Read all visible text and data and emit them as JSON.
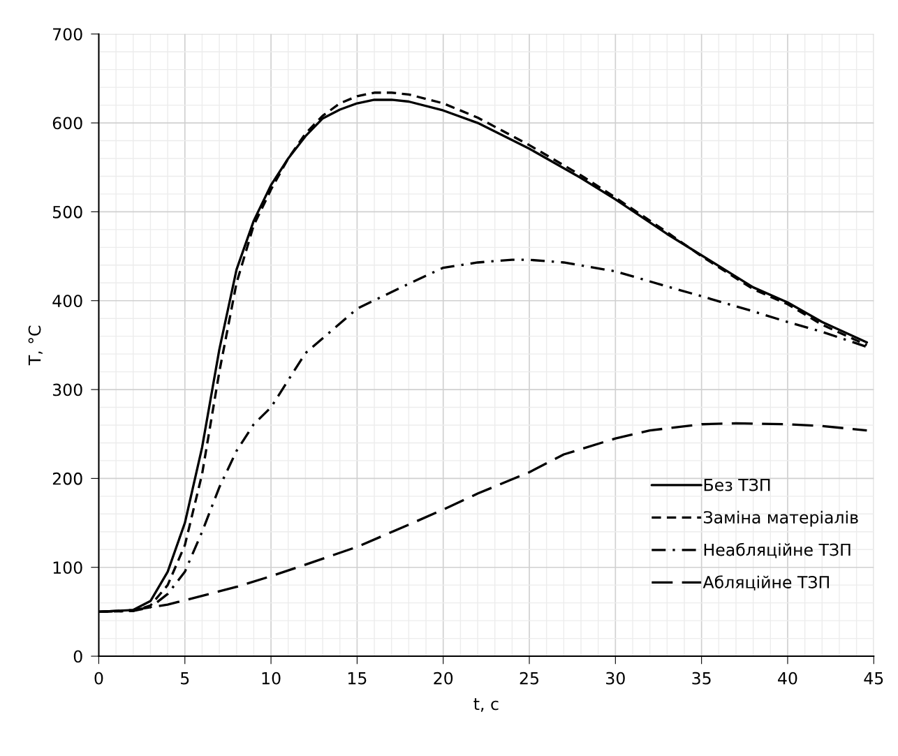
{
  "chart_data": {
    "type": "line",
    "xlabel": "t, с",
    "ylabel": "T, °С",
    "xlim": [
      0,
      45
    ],
    "xticks": [
      0,
      5,
      10,
      15,
      20,
      25,
      30,
      35,
      40,
      45
    ],
    "ylim": [
      0,
      700
    ],
    "yticks": [
      0,
      100,
      200,
      300,
      400,
      500,
      600,
      700
    ],
    "grid": true,
    "legend": "right",
    "marker": "none",
    "series": [
      {
        "name": "Без ТЗП",
        "color": "#000000",
        "line_style": "solid",
        "x": [
          0,
          2,
          3,
          4,
          5,
          6,
          7,
          8,
          9,
          10,
          11,
          12,
          13,
          14,
          15,
          16,
          17,
          18,
          20,
          22,
          25,
          28,
          30,
          33,
          35,
          38,
          40,
          42,
          44.6
        ],
        "values": [
          50,
          52,
          62,
          95,
          150,
          235,
          345,
          435,
          490,
          530,
          560,
          585,
          605,
          615,
          622,
          626,
          626,
          624,
          614,
          600,
          571,
          538,
          514,
          475,
          451,
          415,
          398,
          376,
          353
        ]
      },
      {
        "name": "Заміна матеріалів",
        "color": "#000000",
        "line_style": "dashed",
        "x": [
          0,
          2,
          3,
          4,
          5,
          6,
          7,
          8,
          9,
          10,
          11,
          12,
          13,
          14,
          15,
          16,
          17,
          18,
          20,
          22,
          25,
          28,
          30,
          33,
          35,
          38,
          40,
          42,
          44.6
        ],
        "values": [
          50,
          51,
          57,
          80,
          125,
          205,
          320,
          420,
          485,
          525,
          560,
          588,
          608,
          622,
          630,
          634,
          634,
          632,
          622,
          606,
          575,
          541,
          516,
          477,
          450,
          413,
          396,
          373,
          350
        ]
      },
      {
        "name": "Неабляційне ТЗП",
        "color": "#000000",
        "line_style": "dashdot",
        "x": [
          0,
          2,
          3,
          4,
          5,
          6,
          7,
          8,
          9,
          10,
          12,
          15,
          18,
          20,
          22,
          24,
          25,
          27,
          30,
          33,
          35,
          38,
          40,
          42,
          44.6
        ],
        "values": [
          50,
          51,
          55,
          70,
          95,
          140,
          190,
          231,
          261,
          280,
          341,
          391,
          419,
          437,
          443,
          446,
          446,
          443,
          433,
          416,
          405,
          388,
          376,
          365,
          348
        ]
      },
      {
        "name": "Абляційне ТЗП",
        "color": "#000000",
        "line_style": "longdash",
        "x": [
          0,
          2,
          4,
          5,
          8,
          10,
          12,
          15,
          18,
          20,
          22,
          25,
          27,
          30,
          32,
          35,
          37,
          40,
          42,
          44.6
        ],
        "values": [
          50,
          52,
          58,
          63,
          78,
          90,
          103,
          123,
          148,
          165,
          183,
          207,
          227,
          245,
          254,
          261,
          262,
          261,
          259,
          254
        ]
      }
    ]
  }
}
